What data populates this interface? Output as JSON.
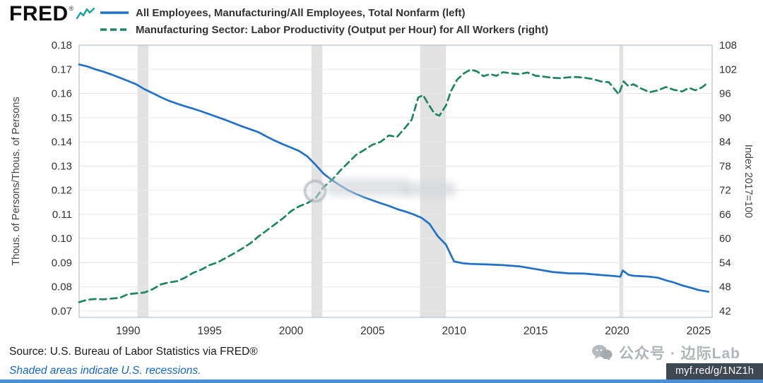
{
  "header": {
    "logo": "FRED",
    "registered": "®",
    "legend": [
      {
        "label": "All Employees, Manufacturing/All Employees, Total Nonfarm (left)",
        "color": "#2171c7",
        "style": "solid"
      },
      {
        "label": "Manufacturing Sector: Labor Productivity (Output per Hour) for All Workers (right)",
        "color": "#1d8560",
        "style": "dashed"
      }
    ]
  },
  "footer": {
    "source": "Source: U.S. Bureau of Labor Statistics via FRED®",
    "note": "Shaded areas indicate U.S. recessions.",
    "watermark": "公众号 · 边际Lab",
    "shortlink": "myf.red/g/1NZ1h"
  },
  "colors": {
    "link_blue": "#1668c8",
    "bottom_bar": "#4a90d5",
    "shortlink_bg": "#3d4852",
    "watermark_gray": "#a7adb3",
    "logo_icon_teal": "#17a398"
  },
  "chart_data": {
    "type": "line",
    "title": "",
    "x_axis": {
      "ticks": [
        1990,
        1995,
        2000,
        2005,
        2010,
        2015,
        2020,
        2025
      ],
      "range": [
        1987,
        2025.83
      ]
    },
    "left_axis": {
      "label": "Thous. of Persons/Thous. of Persons",
      "range": [
        0.07,
        0.18
      ],
      "ticks": [
        0.07,
        0.08,
        0.09,
        0.1,
        0.11,
        0.12,
        0.13,
        0.14,
        0.15,
        0.16,
        0.17,
        0.18
      ]
    },
    "right_axis": {
      "label": "Index 2017=100",
      "range": [
        42,
        108
      ],
      "ticks": [
        42,
        48,
        54,
        60,
        66,
        72,
        78,
        84,
        90,
        96,
        102,
        108
      ]
    },
    "grid": true,
    "legend_position": "top",
    "recessions": [
      [
        1990.58,
        1991.25
      ],
      [
        2001.25,
        2001.92
      ],
      [
        2007.92,
        2009.5
      ],
      [
        2020.13,
        2020.38
      ]
    ],
    "style": {
      "grid_color": "#e8e8e8",
      "recession_color": "#e2e2e2",
      "border_color": "#b3c3cd",
      "tick_color": "#333333"
    },
    "series": [
      {
        "name": "All Employees, Manufacturing/All Employees, Total Nonfarm",
        "axis": "left",
        "color": "#2171c7",
        "dash": false,
        "x": [
          1987,
          1987.5,
          1988,
          1988.5,
          1989,
          1989.5,
          1990,
          1990.5,
          1991,
          1991.5,
          1992,
          1992.5,
          1993,
          1993.5,
          1994,
          1994.5,
          1995,
          1995.5,
          1996,
          1996.5,
          1997,
          1997.5,
          1998,
          1998.5,
          1999,
          1999.5,
          2000,
          2000.5,
          2001,
          2001.5,
          2002,
          2002.5,
          2003,
          2003.5,
          2004,
          2004.5,
          2005,
          2005.5,
          2006,
          2006.5,
          2007,
          2007.5,
          2008,
          2008.5,
          2009,
          2009.5,
          2010,
          2010.5,
          2011,
          2012,
          2013,
          2014,
          2015,
          2016,
          2017,
          2018,
          2019,
          2019.8,
          2020.2,
          2020.35,
          2020.7,
          2021,
          2021.5,
          2022,
          2022.5,
          2023,
          2023.5,
          2024,
          2024.5,
          2025,
          2025.6
        ],
        "y": [
          0.172,
          0.1712,
          0.17,
          0.169,
          0.1678,
          0.1665,
          0.1652,
          0.1638,
          0.1618,
          0.1602,
          0.1585,
          0.157,
          0.1558,
          0.1547,
          0.1537,
          0.1526,
          0.1514,
          0.1502,
          0.149,
          0.1477,
          0.1464,
          0.1452,
          0.144,
          0.1422,
          0.1405,
          0.139,
          0.1376,
          0.1362,
          0.134,
          0.1305,
          0.1268,
          0.1242,
          0.122,
          0.12,
          0.1184,
          0.117,
          0.1158,
          0.1146,
          0.1135,
          0.1122,
          0.1112,
          0.11,
          0.1086,
          0.106,
          0.101,
          0.0975,
          0.0905,
          0.0898,
          0.0895,
          0.0893,
          0.089,
          0.0885,
          0.0874,
          0.0862,
          0.0856,
          0.0855,
          0.0849,
          0.0845,
          0.0842,
          0.0868,
          0.085,
          0.0846,
          0.0844,
          0.0842,
          0.0838,
          0.0827,
          0.0818,
          0.0806,
          0.0797,
          0.0787,
          0.078
        ]
      },
      {
        "name": "Manufacturing Sector: Labor Productivity (Output per Hour) for All Workers",
        "axis": "right",
        "color": "#1d8560",
        "dash": true,
        "x": [
          1987,
          1987.5,
          1988,
          1988.5,
          1989,
          1989.5,
          1990,
          1990.5,
          1991,
          1991.5,
          1992,
          1992.5,
          1993,
          1993.5,
          1994,
          1994.5,
          1995,
          1995.5,
          1996,
          1996.5,
          1997,
          1997.5,
          1998,
          1998.5,
          1999,
          1999.5,
          2000,
          2000.5,
          2001,
          2001.5,
          2002,
          2002.5,
          2003,
          2003.5,
          2004,
          2004.5,
          2005,
          2005.5,
          2006,
          2006.5,
          2007,
          2007.4,
          2007.8,
          2008.1,
          2008.4,
          2008.8,
          2009.1,
          2009.5,
          2009.8,
          2010.2,
          2010.6,
          2011,
          2011.4,
          2011.8,
          2012.2,
          2012.6,
          2013,
          2013.5,
          2014,
          2014.5,
          2015,
          2015.5,
          2016,
          2016.5,
          2017,
          2017.5,
          2018,
          2018.5,
          2019,
          2019.5,
          2020.1,
          2020.4,
          2020.7,
          2021,
          2021.5,
          2022,
          2022.5,
          2023,
          2023.5,
          2024,
          2024.4,
          2024.8,
          2025.2,
          2025.6
        ],
        "y": [
          44.2,
          44.8,
          45.0,
          44.9,
          45.1,
          45.3,
          46.2,
          46.4,
          46.6,
          47.4,
          48.6,
          49.1,
          49.4,
          50.3,
          51.5,
          52.3,
          53.4,
          54.1,
          55.2,
          56.3,
          57.5,
          58.8,
          60.5,
          62.0,
          63.5,
          65.0,
          66.8,
          68.0,
          68.8,
          70.0,
          72.8,
          74.5,
          76.8,
          78.8,
          80.8,
          82.0,
          83.3,
          84.0,
          85.6,
          85.2,
          87.5,
          89.5,
          95.0,
          95.6,
          93.5,
          91.0,
          90.5,
          93.0,
          96.5,
          99.5,
          101.0,
          101.9,
          101.5,
          100.3,
          100.8,
          100.4,
          101.3,
          101.0,
          100.8,
          101.2,
          100.4,
          100.2,
          99.9,
          99.8,
          100.0,
          100.1,
          99.9,
          99.6,
          99.0,
          98.8,
          95.8,
          99.0,
          97.8,
          98.3,
          97.2,
          96.3,
          96.8,
          97.6,
          96.9,
          96.5,
          97.4,
          96.8,
          97.5,
          98.8
        ]
      }
    ]
  }
}
